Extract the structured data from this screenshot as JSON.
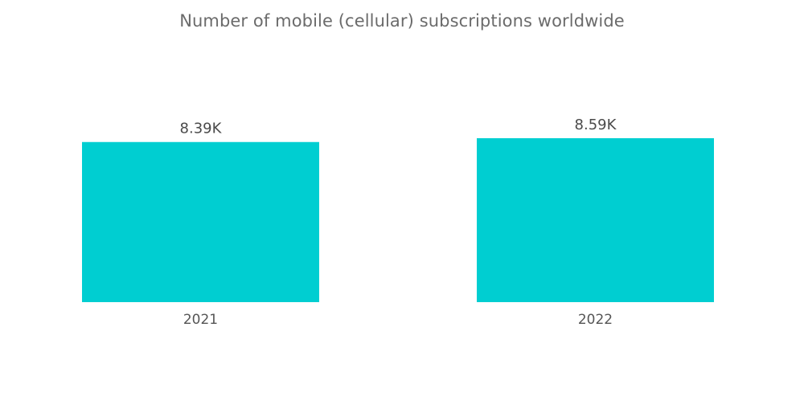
{
  "chart_data": {
    "type": "bar",
    "title": "Number of mobile (cellular) subscriptions worldwide",
    "categories": [
      "2021",
      "2022"
    ],
    "values": [
      8390,
      8590
    ],
    "value_labels": [
      "8.39K",
      "8.59K"
    ],
    "xlabel": "",
    "ylabel": "",
    "ylim": [
      0,
      8590
    ],
    "grid": false,
    "legend": "none",
    "bar_color": "#00CED1"
  }
}
